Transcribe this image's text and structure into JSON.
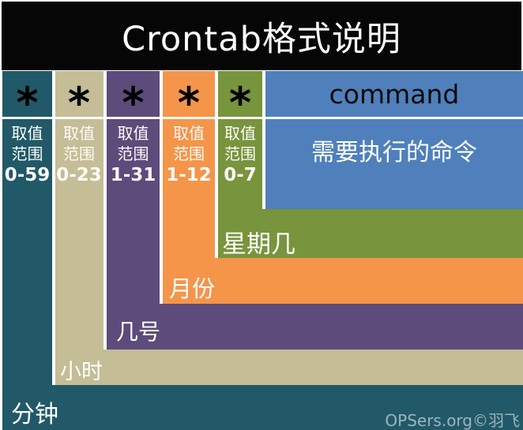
{
  "page": {
    "title": "Crontab格式说明",
    "watermark": "OPSers.org©羽飞"
  },
  "range_caption": {
    "line1": "取值",
    "line2": "范围"
  },
  "fields": [
    {
      "key": "minute",
      "star": "*",
      "range": "0-59",
      "label": "分钟",
      "color": "#215968"
    },
    {
      "key": "hour",
      "star": "*",
      "range": "0-23",
      "label": "小时",
      "color": "#C4BD96"
    },
    {
      "key": "day-of-month",
      "star": "*",
      "range": "1-31",
      "label": "几号",
      "color": "#5D4B7C"
    },
    {
      "key": "month",
      "star": "*",
      "range": "1-12",
      "label": "月份",
      "color": "#F4954A"
    },
    {
      "key": "day-of-week",
      "star": "*",
      "range": "0-7",
      "label": "星期几",
      "color": "#78943C"
    }
  ],
  "command": {
    "header": "command",
    "description": "需要执行的命令",
    "color": "#4F80BC"
  },
  "decoration": {
    "separator_color": "#FFFFFF",
    "header_background": "#060606"
  }
}
